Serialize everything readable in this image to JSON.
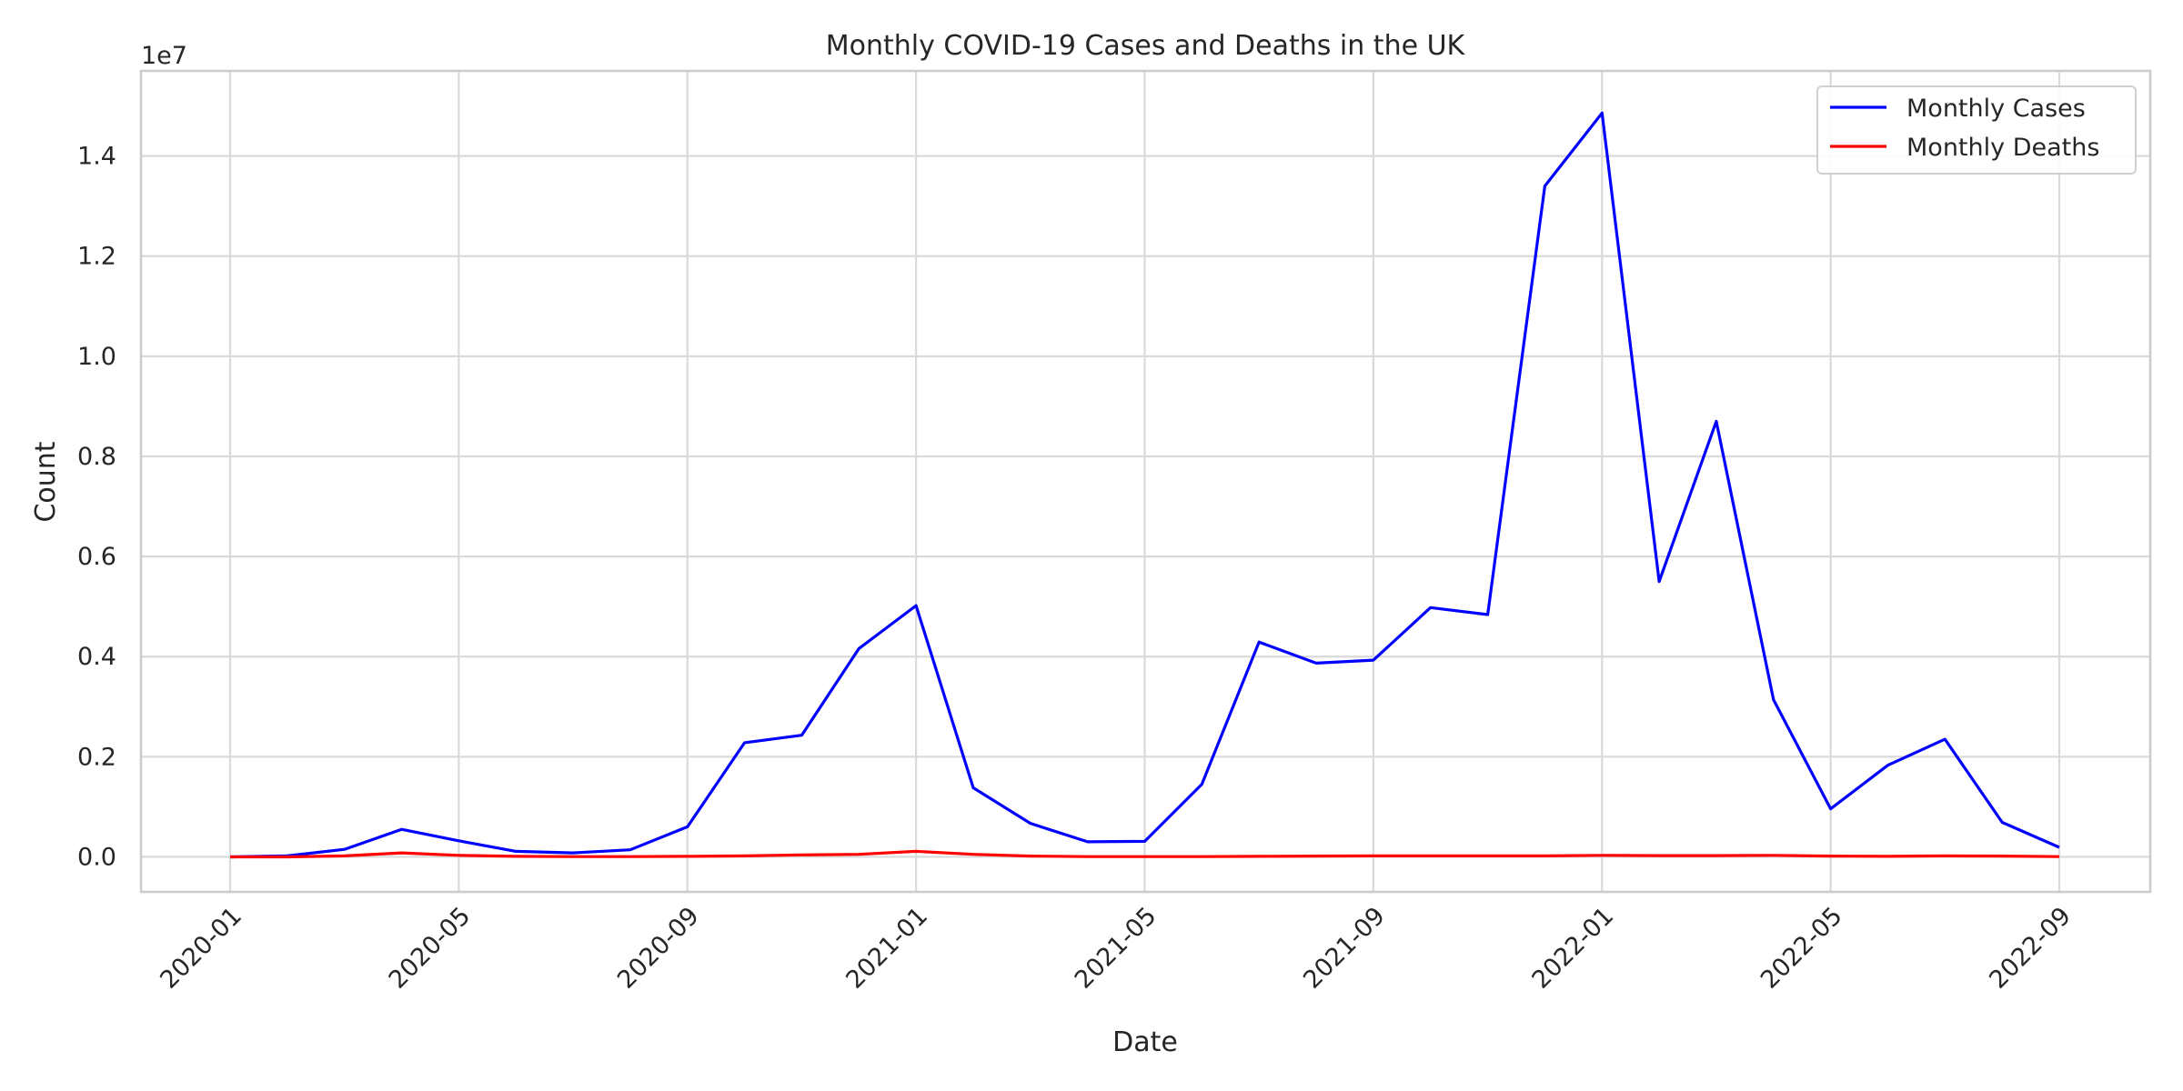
{
  "chart_data": {
    "type": "line",
    "title": "Monthly COVID-19 Cases and Deaths in the UK",
    "xlabel": "Date",
    "ylabel": "Count",
    "y_offset_label": "1e7",
    "x_ticks": [
      "2020-01",
      "2020-05",
      "2020-09",
      "2021-01",
      "2021-05",
      "2021-09",
      "2022-01",
      "2022-05",
      "2022-09"
    ],
    "y_ticks": [
      0,
      2000000,
      4000000,
      6000000,
      8000000,
      10000000,
      12000000,
      14000000
    ],
    "y_tick_labels": [
      "0.0",
      "0.2",
      "0.4",
      "0.6",
      "0.8",
      "1.0",
      "1.2",
      "1.4"
    ],
    "ylim": [
      -700000,
      15700000
    ],
    "grid": true,
    "legend_position": "top-right",
    "x": [
      "2020-01",
      "2020-02",
      "2020-03",
      "2020-04",
      "2020-05",
      "2020-06",
      "2020-07",
      "2020-08",
      "2020-09",
      "2020-10",
      "2020-11",
      "2020-12",
      "2021-01",
      "2021-02",
      "2021-03",
      "2021-04",
      "2021-05",
      "2021-06",
      "2021-07",
      "2021-08",
      "2021-09",
      "2021-10",
      "2021-11",
      "2021-12",
      "2022-01",
      "2022-02",
      "2022-03",
      "2022-04",
      "2022-05",
      "2022-06",
      "2022-07",
      "2022-08",
      "2022-09"
    ],
    "series": [
      {
        "name": "Monthly Cases",
        "color": "#0000ff",
        "values": [
          0,
          20000,
          150000,
          550000,
          320000,
          110000,
          80000,
          140000,
          600000,
          2280000,
          2430000,
          4160000,
          5020000,
          1380000,
          670000,
          300000,
          310000,
          1450000,
          4290000,
          3870000,
          3930000,
          4980000,
          4840000,
          13400000,
          14860000,
          5500000,
          8700000,
          3140000,
          960000,
          1830000,
          2350000,
          690000,
          190000
        ]
      },
      {
        "name": "Monthly Deaths",
        "color": "#ff0000",
        "values": [
          0,
          0,
          20000,
          80000,
          30000,
          10000,
          5000,
          5000,
          10000,
          20000,
          40000,
          50000,
          110000,
          50000,
          15000,
          5000,
          5000,
          5000,
          10000,
          15000,
          20000,
          20000,
          20000,
          20000,
          30000,
          25000,
          25000,
          30000,
          15000,
          10000,
          20000,
          15000,
          5000
        ]
      }
    ]
  }
}
